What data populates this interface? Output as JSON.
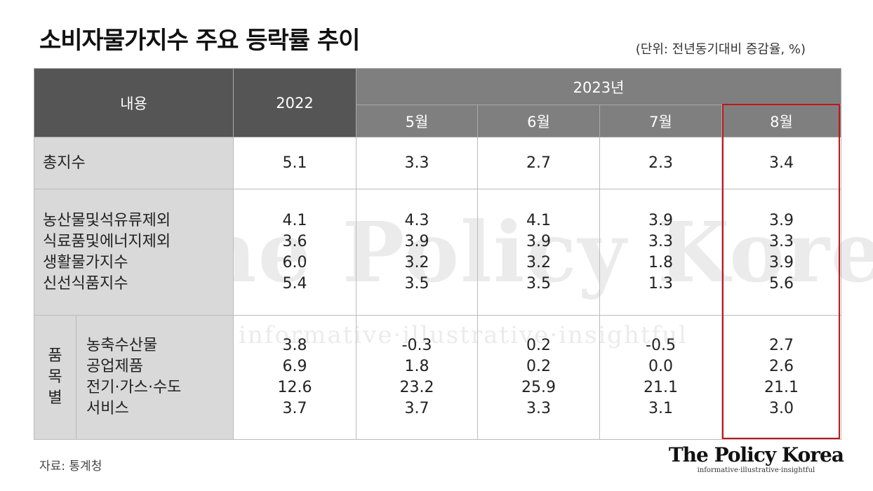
{
  "title": "소비자물가지수 주요 등락률 추이",
  "unit": "(단위: 전년동기대비 증감율, %)",
  "source": "자료: 통계청",
  "logo": {
    "main": "The Policy Korea",
    "sub": "informative·illustrative·insightful"
  },
  "watermark": {
    "main": "The Policy Korea",
    "sub": "informative·illustrative·insightful"
  },
  "colors": {
    "header_dark": "#555555",
    "header": "#7f7f7f",
    "label_bg": "#d9d9d9",
    "highlight": "#c0161c"
  },
  "chart_data": {
    "type": "table",
    "header": {
      "content": "내용",
      "year2022": "2022",
      "year2023": "2023년",
      "months": [
        "5월",
        "6월",
        "7월",
        "8월"
      ]
    },
    "total": {
      "label": "총지수",
      "values": [
        "5.1",
        "3.3",
        "2.7",
        "2.3",
        "3.4"
      ]
    },
    "group1": {
      "labels": [
        "농산물및석유류제외",
        "식료품및에너지제외",
        "생활물가지수",
        "신선식품지수"
      ],
      "columns": [
        [
          "4.1",
          "3.6",
          "6.0",
          "5.4"
        ],
        [
          "4.3",
          "3.9",
          "3.2",
          "3.5"
        ],
        [
          "4.1",
          "3.9",
          "3.2",
          "3.5"
        ],
        [
          "3.9",
          "3.3",
          "1.8",
          "1.3"
        ],
        [
          "3.9",
          "3.3",
          "3.9",
          "5.6"
        ]
      ]
    },
    "group2": {
      "category": [
        "품",
        "목",
        "별"
      ],
      "labels": [
        "농축수산물",
        "공업제품",
        "전기·가스·수도",
        "서비스"
      ],
      "columns": [
        [
          "3.8",
          "6.9",
          "12.6",
          "3.7"
        ],
        [
          "-0.3",
          "1.8",
          "23.2",
          "3.7"
        ],
        [
          "0.2",
          "0.2",
          "25.9",
          "3.3"
        ],
        [
          "-0.5",
          "0.0",
          "21.1",
          "3.1"
        ],
        [
          "2.7",
          "2.6",
          "21.1",
          "3.0"
        ]
      ]
    },
    "highlighted_column": "8월"
  }
}
